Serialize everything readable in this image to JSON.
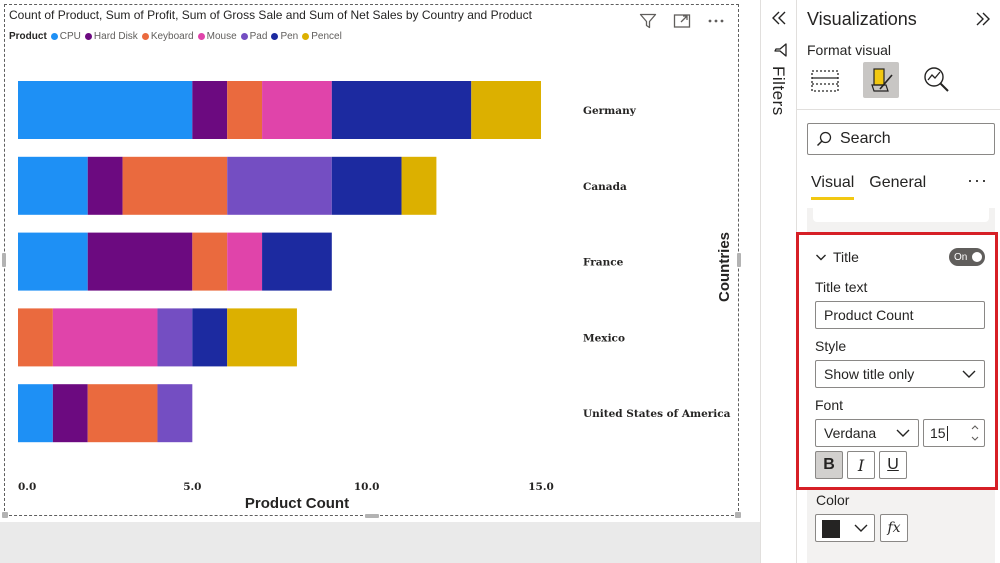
{
  "visual": {
    "title": "Count of Product, Sum of Profit, Sum of Gross Sale and Sum of Net Sales by Country and Product",
    "legend_title": "Product",
    "legend": [
      {
        "label": "CPU",
        "color": "#1e90f5"
      },
      {
        "label": "Hard Disk",
        "color": "#6c0a80"
      },
      {
        "label": "Keyboard",
        "color": "#ea6a3e"
      },
      {
        "label": "Mouse",
        "color": "#e044aa"
      },
      {
        "label": "Pad",
        "color": "#744ec2"
      },
      {
        "label": "Pen",
        "color": "#1c2aa0"
      },
      {
        "label": "Pencel",
        "color": "#dcb000"
      }
    ],
    "actions": [
      "filter-icon",
      "focus-mode-icon",
      "more-options-icon"
    ]
  },
  "chart_data": {
    "type": "bar",
    "orientation": "horizontal",
    "stacked": true,
    "categories": [
      "Germany",
      "Canada",
      "France",
      "Mexico",
      "United States of America"
    ],
    "series": [
      {
        "name": "CPU",
        "color": "#1e90f5",
        "values": [
          5,
          2,
          2,
          0,
          1
        ]
      },
      {
        "name": "Hard Disk",
        "color": "#6c0a80",
        "values": [
          1,
          1,
          3,
          0,
          1
        ]
      },
      {
        "name": "Keyboard",
        "color": "#ea6a3e",
        "values": [
          1,
          3,
          1,
          1,
          2
        ]
      },
      {
        "name": "Mouse",
        "color": "#e044aa",
        "values": [
          2,
          0,
          1,
          3,
          0
        ]
      },
      {
        "name": "Pad",
        "color": "#744ec2",
        "values": [
          0,
          3,
          0,
          1,
          1
        ]
      },
      {
        "name": "Pen",
        "color": "#1c2aa0",
        "values": [
          4,
          2,
          2,
          1,
          0
        ]
      },
      {
        "name": "Pencel",
        "color": "#dcb000",
        "values": [
          2,
          1,
          0,
          2,
          0
        ]
      }
    ],
    "xticks": [
      "0.0",
      "5.0",
      "10.0",
      "15.0"
    ],
    "xlim": [
      0,
      15
    ],
    "xlabel": "Product Count",
    "ylabel": "Countries",
    "grid": false,
    "category_axis_position": "right"
  },
  "filters": {
    "label": "Filters",
    "collapse_icon": "double-chevron-left-icon"
  },
  "viz_pane": {
    "title": "Visualizations",
    "subtitle": "Format visual",
    "expand_icon": "double-chevron-right-icon",
    "icons": [
      "build-visual-icon",
      "format-visual-icon",
      "analytics-icon"
    ],
    "search_placeholder": "Search",
    "tabs": [
      "Visual",
      "General"
    ],
    "more": "···",
    "title_section": {
      "header": "Title",
      "toggle": "On",
      "title_text_label": "Title text",
      "title_text_value": "Product Count",
      "style_label": "Style",
      "style_value": "Show title only",
      "font_label": "Font",
      "font_family": "Verdana",
      "font_size": "15",
      "bold": "B",
      "italic": "I",
      "underline": "U"
    },
    "color": {
      "label": "Color",
      "value": "#252423",
      "fx": "fx"
    }
  }
}
